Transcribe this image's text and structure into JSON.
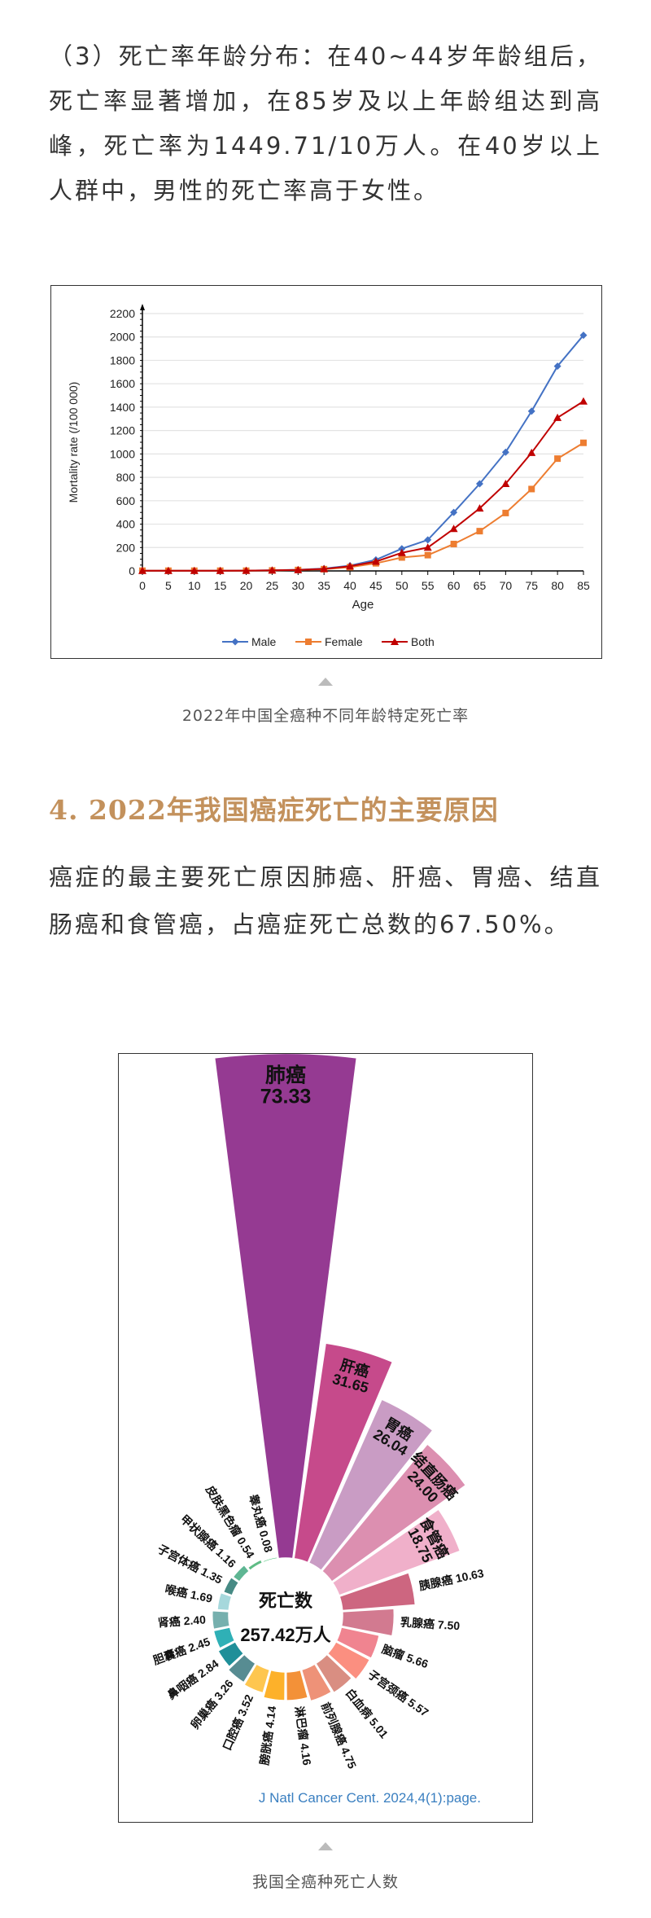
{
  "paragraph1": "（3）死亡率年龄分布：在40~44岁年龄组后，死亡率显著增加，在85岁及以上年龄组达到高峰，死亡率为1449.71/10万人。在40岁以上人群中，男性的死亡率高于女性。",
  "caption1": "2022年中国全癌种不同年龄特定死亡率",
  "heading": "4. 2022年我国癌症死亡的主要原因",
  "paragraph2": "癌症的最主要死亡原因肺癌、肝癌、胃癌、结直肠癌和食管癌，占癌症死亡总数的67.50%。",
  "caption2": "我国全癌种死亡人数",
  "chart_data": [
    {
      "type": "line",
      "xlabel": "Age",
      "ylabel": "Mortality rate (/100 000)",
      "x": [
        0,
        5,
        10,
        15,
        20,
        25,
        30,
        35,
        40,
        45,
        50,
        55,
        60,
        65,
        70,
        75,
        80,
        85
      ],
      "xlim": [
        0,
        85
      ],
      "ylim": [
        0,
        2200
      ],
      "yticks": [
        0,
        200,
        400,
        600,
        800,
        1000,
        1200,
        1400,
        1600,
        1800,
        2000,
        2200
      ],
      "grid": true,
      "legend": "bottom",
      "series": [
        {
          "name": "Male",
          "color": "#4472c4",
          "marker": "diamond",
          "values": [
            2,
            2,
            2,
            2,
            3,
            5,
            10,
            20,
            45,
            95,
            190,
            265,
            500,
            745,
            1015,
            1365,
            1750,
            2015
          ]
        },
        {
          "name": "Female",
          "color": "#ed7d31",
          "marker": "square",
          "values": [
            2,
            2,
            2,
            2,
            2,
            4,
            8,
            15,
            32,
            65,
            115,
            135,
            230,
            340,
            495,
            700,
            960,
            1095
          ]
        },
        {
          "name": "Both",
          "color": "#c00000",
          "marker": "triangle",
          "values": [
            2,
            2,
            2,
            2,
            3,
            5,
            9,
            17,
            40,
            80,
            155,
            200,
            360,
            535,
            745,
            1010,
            1310,
            1450
          ]
        }
      ]
    },
    {
      "type": "polar-bar",
      "center_title": "死亡数",
      "center_value": "257.42万人",
      "source": "J Natl Cancer Cent. 2024,4(1):page.",
      "categories": [
        "肺癌",
        "肝癌",
        "胃癌",
        "结直肠癌",
        "食管癌",
        "胰腺癌",
        "乳腺癌",
        "脑瘤",
        "子宫颈癌",
        "白血病",
        "前列腺癌",
        "淋巴瘤",
        "膀胱癌",
        "口腔癌",
        "卵巢癌",
        "鼻咽癌",
        "胆囊癌",
        "肾癌",
        "喉癌",
        "子宫体癌",
        "甲状腺癌",
        "皮肤黑色瘤",
        "睾丸癌"
      ],
      "values": [
        73.33,
        31.65,
        26.04,
        24.0,
        18.75,
        10.63,
        7.5,
        5.66,
        5.57,
        5.01,
        4.75,
        4.16,
        4.14,
        3.52,
        3.26,
        2.84,
        2.45,
        2.4,
        1.69,
        1.35,
        1.16,
        0.54,
        0.08
      ],
      "labels": [
        "73.33",
        "31.65",
        "26.04",
        "24.00",
        "18.75",
        "10.63",
        "7.50",
        "5.66",
        "5.57",
        "5.01",
        "4.75",
        "4.16",
        "4.14",
        "3.52",
        "3.26",
        "2.84",
        "2.45",
        "2.40",
        "1.69",
        "1.35",
        "1.16",
        "0.54",
        "0.08"
      ],
      "colors": [
        "#953a92",
        "#c64a8b",
        "#c99cc4",
        "#dc8fb0",
        "#f0b0ca",
        "#cd6680",
        "#d27a90",
        "#f08490",
        "#fb8f80",
        "#d98e82",
        "#ee9278",
        "#f39138",
        "#fdb12a",
        "#fec64f",
        "#578c92",
        "#1f8f99",
        "#2fb0b6",
        "#76b0ae",
        "#a6d8dc",
        "#468a84",
        "#5eb693",
        "#5fbc85",
        "#40c070"
      ]
    }
  ]
}
